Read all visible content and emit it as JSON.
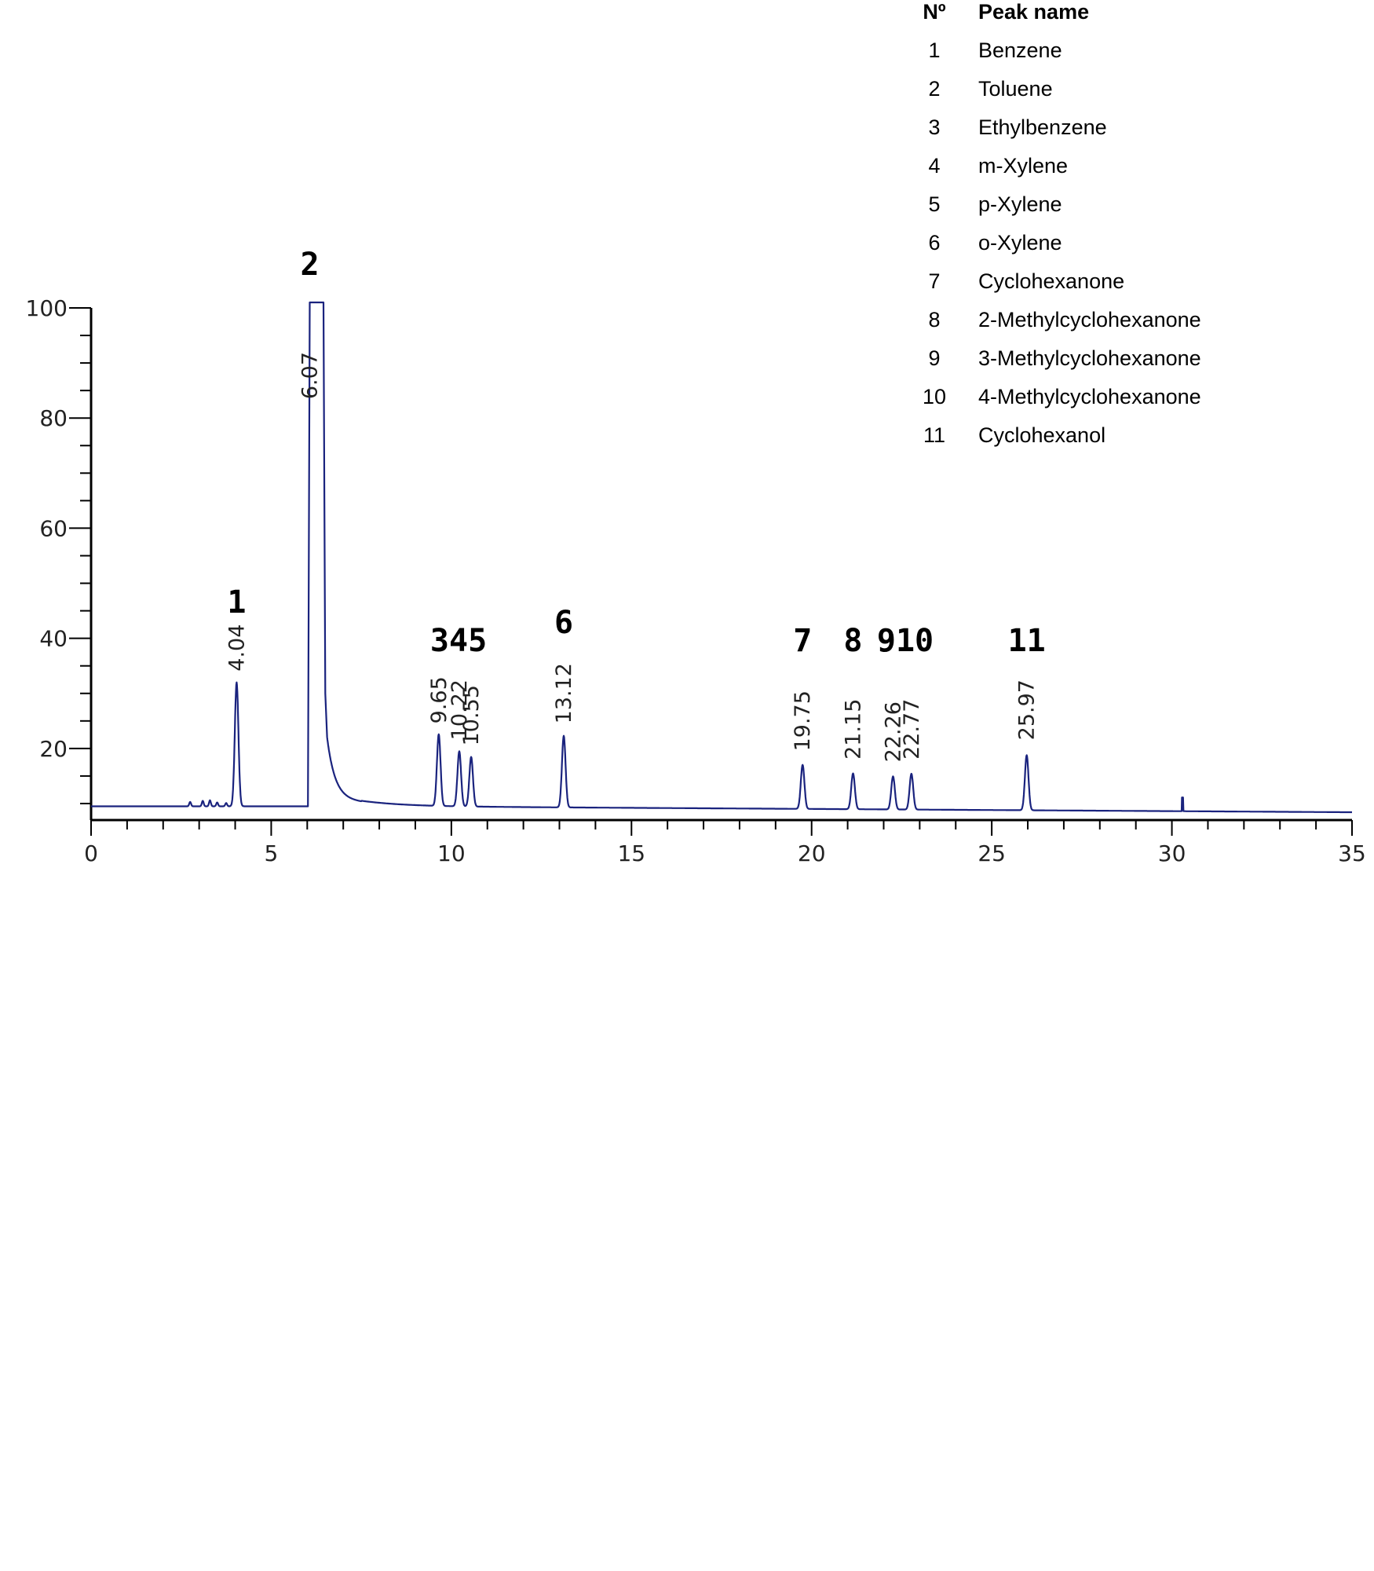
{
  "legend": {
    "header_no": "Nº",
    "header_name": "Peak name",
    "rows": [
      {
        "no": "1",
        "name": "Benzene"
      },
      {
        "no": "2",
        "name": "Toluene"
      },
      {
        "no": "3",
        "name": "Ethylbenzene"
      },
      {
        "no": "4",
        "name": "m-Xylene"
      },
      {
        "no": "5",
        "name": "p-Xylene"
      },
      {
        "no": "6",
        "name": "o-Xylene"
      },
      {
        "no": "7",
        "name": "Cyclohexanone"
      },
      {
        "no": "8",
        "name": "2-Methylcyclohexanone"
      },
      {
        "no": "9",
        "name": "3-Methylcyclohexanone"
      },
      {
        "no": "10",
        "name": "4-Methylcyclohexanone"
      },
      {
        "no": "11",
        "name": "Cyclohexanol"
      }
    ]
  },
  "chart_data": {
    "type": "line",
    "title": "",
    "xlabel": "",
    "ylabel": "",
    "xlim": [
      0,
      35
    ],
    "ylim": [
      7,
      100
    ],
    "x_ticks": [
      0,
      5,
      10,
      15,
      20,
      25,
      30,
      35
    ],
    "y_ticks": [
      20,
      40,
      60,
      80,
      100
    ],
    "grid": false,
    "line_color": "#1a237e",
    "baseline": 9.5,
    "peaks": [
      {
        "rt": 4.04,
        "label": "4.04",
        "height": 32
      },
      {
        "rt": 6.07,
        "label": "6.07",
        "height": 100
      },
      {
        "rt": 9.65,
        "label": "9.65",
        "height": 22.5
      },
      {
        "rt": 10.22,
        "label": "10.22",
        "height": 19.5
      },
      {
        "rt": 10.55,
        "label": "10.55",
        "height": 18.5
      },
      {
        "rt": 13.12,
        "label": "13.12",
        "height": 22.5
      },
      {
        "rt": 19.75,
        "label": "19.75",
        "height": 17.5
      },
      {
        "rt": 21.15,
        "label": "21.15",
        "height": 16
      },
      {
        "rt": 22.26,
        "label": "22.26",
        "height": 15.5
      },
      {
        "rt": 22.77,
        "label": "22.77",
        "height": 16
      },
      {
        "rt": 25.97,
        "label": "25.97",
        "height": 19.5
      }
    ],
    "peak_numbers": [
      {
        "text": "1",
        "x": 4.04
      },
      {
        "text": "2",
        "x": 6.07
      },
      {
        "text": "345",
        "x": 10.2
      },
      {
        "text": "6",
        "x": 13.12
      },
      {
        "text": "7",
        "x": 19.75
      },
      {
        "text": "8",
        "x": 21.15
      },
      {
        "text": "910",
        "x": 22.6
      },
      {
        "text": "11",
        "x": 25.97
      }
    ]
  }
}
